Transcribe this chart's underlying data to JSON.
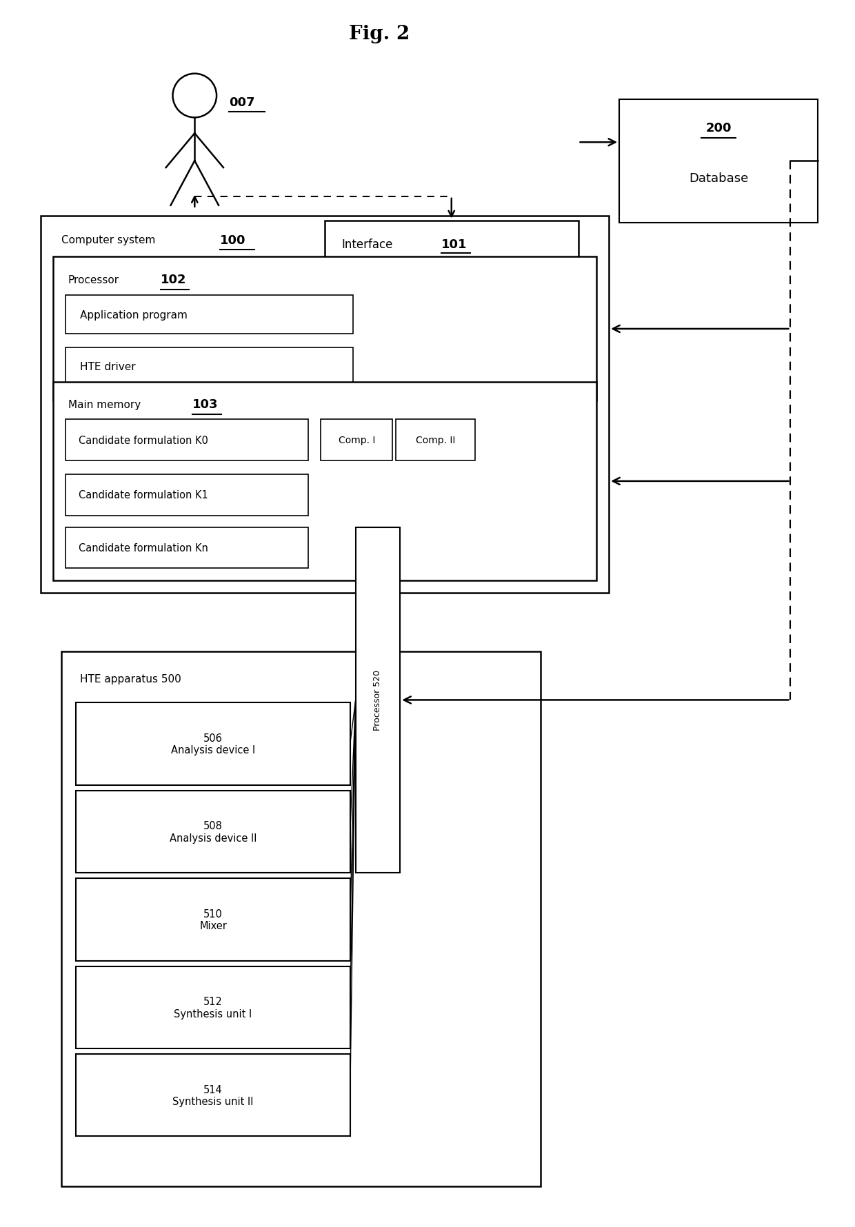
{
  "title": "Fig. 2",
  "bg_color": "#ffffff",
  "fig_width": 12.4,
  "fig_height": 17.81,
  "person_label": "007",
  "database_label": "200",
  "database_sublabel": "Database",
  "computer_system_label": "Computer system",
  "computer_system_num": "100",
  "interface_label": "Interface",
  "interface_num": "101",
  "processor_label": "Processor",
  "processor_num": "102",
  "app_program_label": "Application program",
  "hte_driver_label": "HTE driver",
  "main_memory_label": "Main memory",
  "main_memory_num": "103",
  "cand_k0_label": "Candidate formulation K0",
  "comp1_label": "Comp. I",
  "comp2_label": "Comp. II",
  "cand_k1_label": "Candidate formulation K1",
  "cand_kn_label": "Candidate formulation Kn",
  "hte_apparatus_label": "HTE apparatus 500",
  "dev506_label": "506\nAnalysis device I",
  "dev508_label": "508\nAnalysis device II",
  "dev510_label": "510\nMixer",
  "dev512_label": "512\nSynthesis unit I",
  "dev514_label": "514\nSynthesis unit II",
  "processor520_label": "Processor 520"
}
